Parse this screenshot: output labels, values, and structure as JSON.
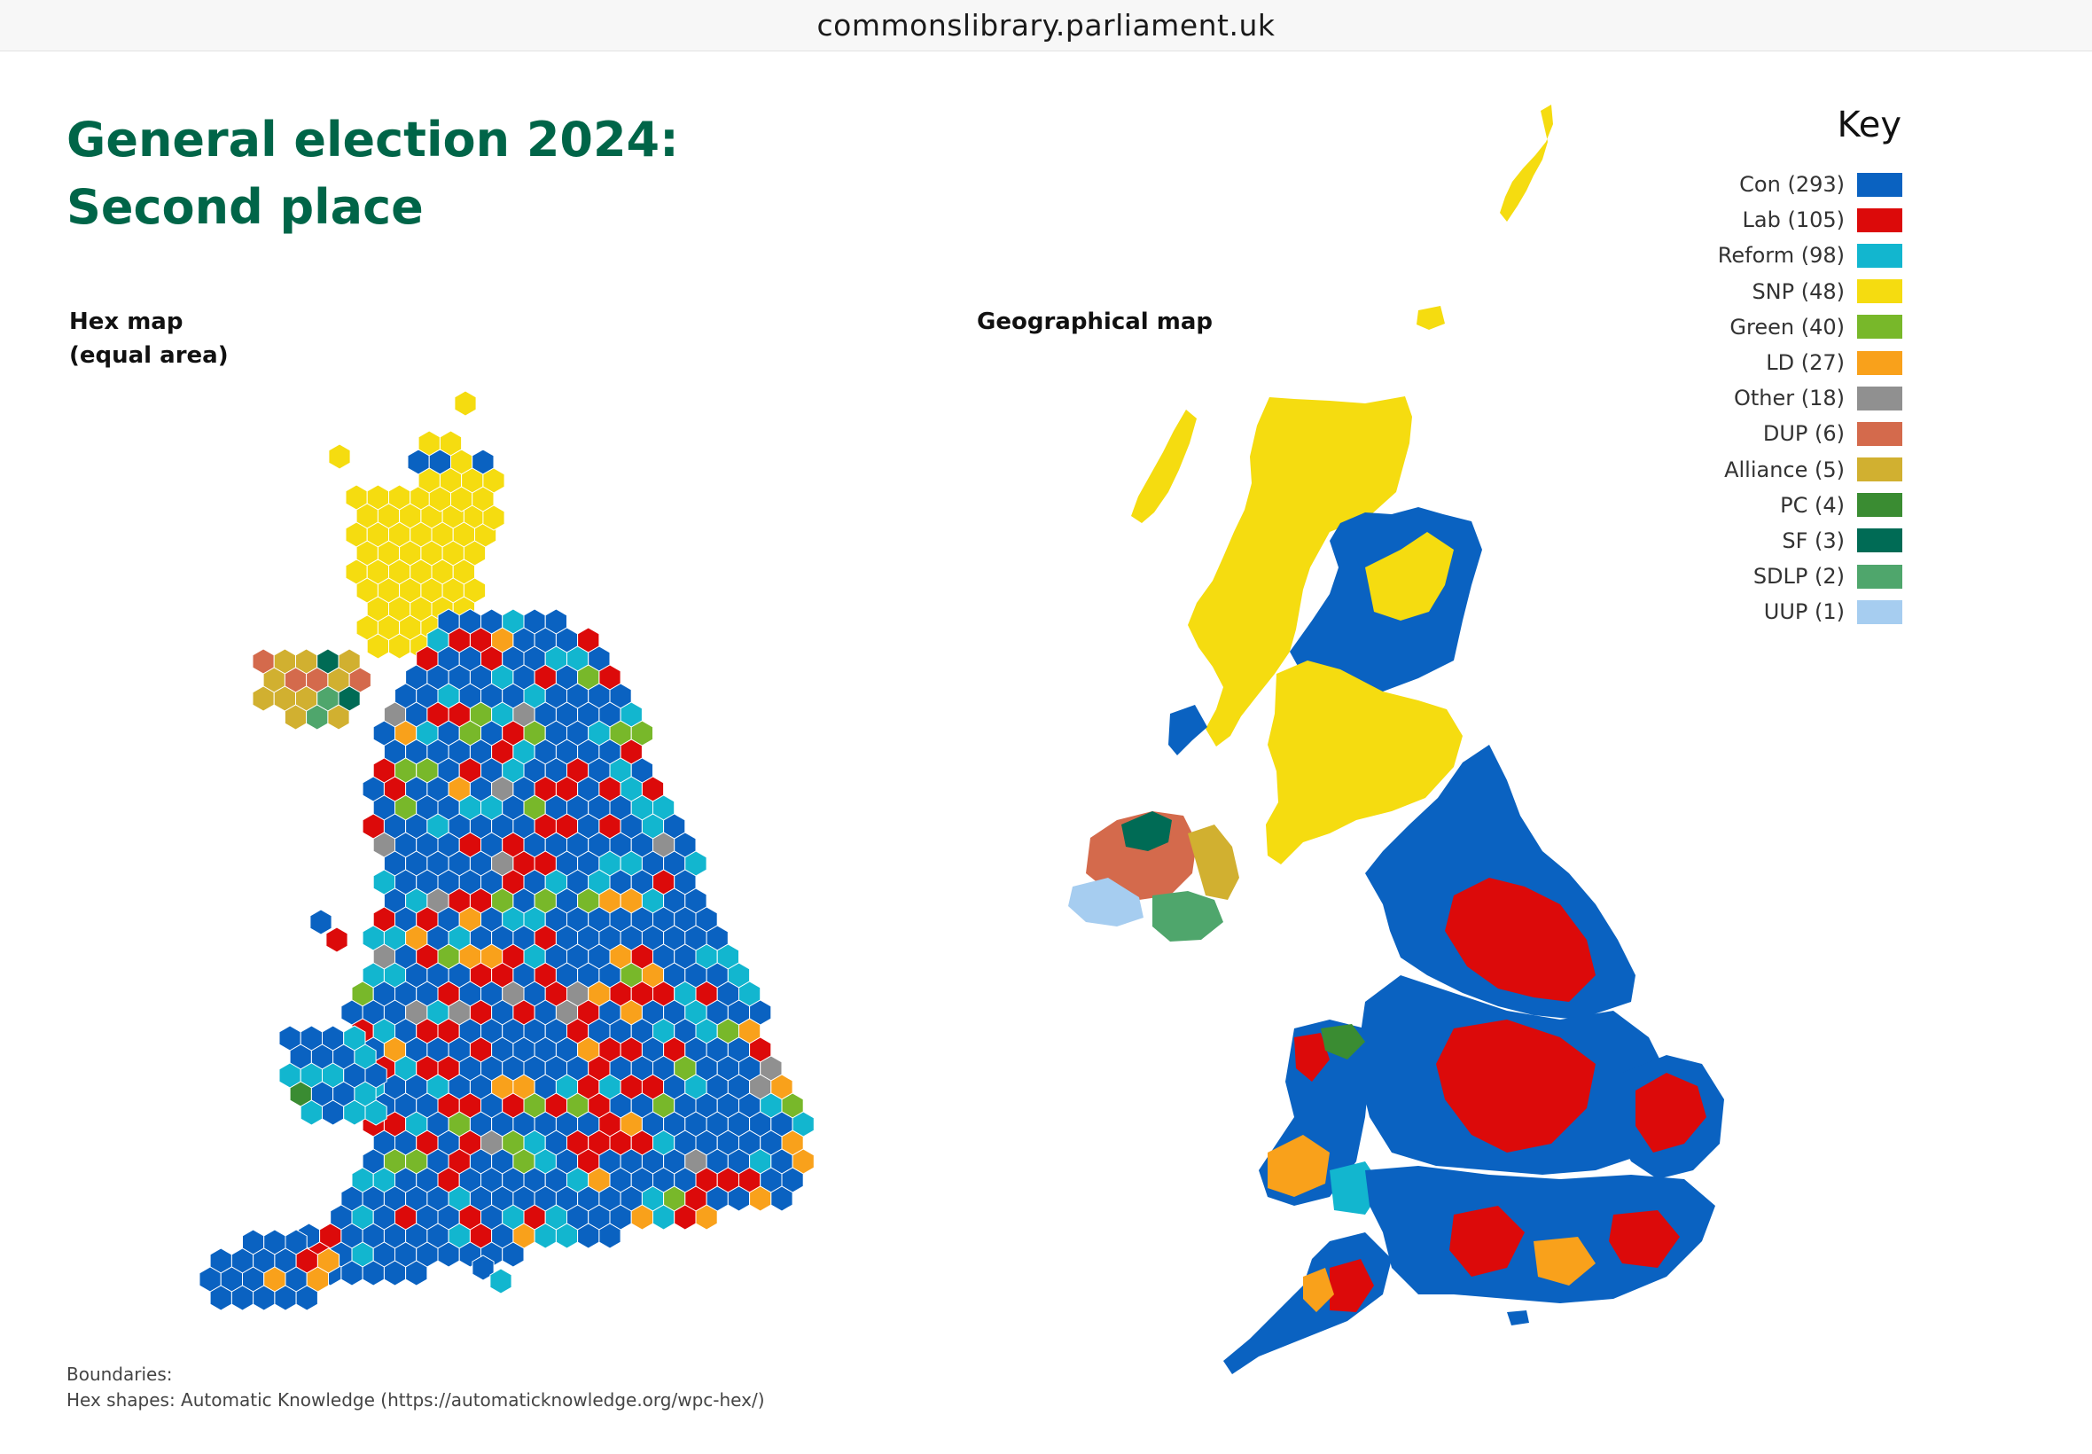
{
  "browser": {
    "url": "commonslibrary.parliament.uk"
  },
  "title": {
    "line1": "General election 2024:",
    "line2": "Second place"
  },
  "hex_map": {
    "label_line1": "Hex map",
    "label_line2": "(equal area)"
  },
  "geo_map": {
    "label": "Geographical map"
  },
  "legend": {
    "title": "Key",
    "items": [
      {
        "label": "Con (293)",
        "color": "#0a62c1"
      },
      {
        "label": "Lab (105)",
        "color": "#dc0a0a"
      },
      {
        "label": "Reform (98)",
        "color": "#12b6cf"
      },
      {
        "label": "SNP (48)",
        "color": "#f5dc10"
      },
      {
        "label": "Green (40)",
        "color": "#78b82a"
      },
      {
        "label": "LD (27)",
        "color": "#f9a11b"
      },
      {
        "label": "Other (18)",
        "color": "#909090"
      },
      {
        "label": "DUP (6)",
        "color": "#d46a4c"
      },
      {
        "label": "Alliance (5)",
        "color": "#d1b030"
      },
      {
        "label": "PC (4)",
        "color": "#3a8c32"
      },
      {
        "label": "SF (3)",
        "color": "#006b55"
      },
      {
        "label": "SDLP (2)",
        "color": "#4fa66c"
      },
      {
        "label": "UUP (1)",
        "color": "#a6cdf0"
      }
    ]
  },
  "footer": {
    "line1": "Boundaries:",
    "line2": "Hex shapes: Automatic Knowledge (https://automaticknowledge.org/wpc-hex/)"
  }
}
